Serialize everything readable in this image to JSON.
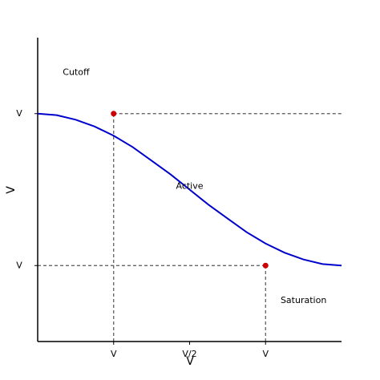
{
  "chart_data": {
    "type": "line",
    "x_label": "V",
    "y_label": "V",
    "x": [
      0,
      0.25,
      0.5,
      0.75,
      1,
      1.25,
      1.5,
      1.75,
      2,
      2.25,
      2.5,
      2.75,
      3,
      3.25,
      3.5,
      3.75,
      4
    ],
    "series": [
      {
        "color": "#0000cc",
        "values": [
          3,
          2.98,
          2.92,
          2.83,
          2.71,
          2.56,
          2.38,
          2.2,
          2,
          1.8,
          1.62,
          1.44,
          1.29,
          1.17,
          1.08,
          1.02,
          1
        ]
      }
    ],
    "points": {
      "color": "#cc0000",
      "x": [
        1,
        3
      ],
      "y": [
        3,
        1
      ]
    },
    "xlim": [
      0,
      4
    ],
    "ylim": [
      0,
      4
    ],
    "xticks": [
      {
        "value": 1,
        "label": "V"
      },
      {
        "value": 2,
        "label": "V/2"
      },
      {
        "value": 3,
        "label": "V"
      }
    ],
    "yticks": [
      {
        "value": 1,
        "label": "V"
      },
      {
        "value": 3,
        "label": "V"
      }
    ],
    "annotations": [
      {
        "text": "Cutoff",
        "x": 0.33,
        "y": 3.54
      },
      {
        "text": "Active",
        "x": 2,
        "y": 2.04
      },
      {
        "text": "Saturation",
        "x": 3.5,
        "y": 0.54
      }
    ]
  }
}
